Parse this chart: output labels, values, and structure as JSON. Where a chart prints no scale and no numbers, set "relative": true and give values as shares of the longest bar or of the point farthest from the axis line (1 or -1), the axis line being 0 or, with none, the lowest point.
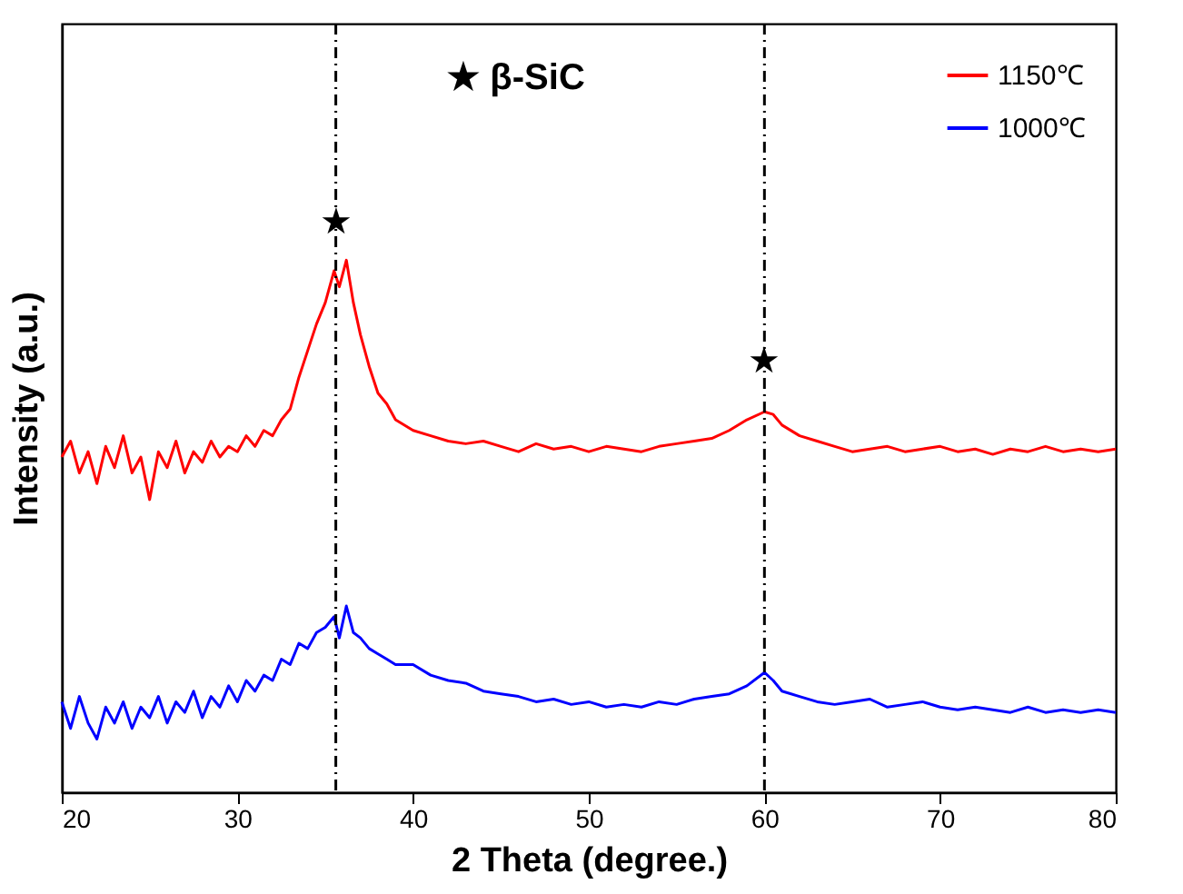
{
  "chart_data": {
    "type": "line",
    "relative": true,
    "xlabel": "2 Theta (degree.)",
    "ylabel": "Intensity (a.u.)",
    "xlim": [
      20,
      80
    ],
    "xticks": [
      20,
      30,
      40,
      50,
      60,
      70,
      80
    ],
    "grid": false,
    "legend": "top right",
    "marker": "none",
    "line_style": "solid",
    "x": [
      20,
      20.5,
      21,
      21.5,
      22,
      22.5,
      23,
      23.5,
      24,
      24.5,
      25,
      25.5,
      26,
      26.5,
      27,
      27.5,
      28,
      28.5,
      29,
      29.5,
      30,
      30.5,
      31,
      31.5,
      32,
      32.5,
      33,
      33.5,
      34,
      34.5,
      35,
      35.5,
      35.8,
      36.2,
      36.6,
      37,
      37.5,
      38,
      38.5,
      39,
      40,
      41,
      42,
      43,
      44,
      45,
      46,
      47,
      48,
      49,
      50,
      51,
      52,
      53,
      54,
      55,
      56,
      57,
      58,
      59,
      60,
      60.5,
      61,
      62,
      63,
      64,
      65,
      66,
      67,
      68,
      69,
      70,
      71,
      72,
      73,
      74,
      75,
      76,
      77,
      78,
      79,
      80
    ],
    "series": [
      {
        "name": "1150℃",
        "color": "#ff0000",
        "values": [
          0.63,
          0.66,
          0.6,
          0.64,
          0.58,
          0.65,
          0.61,
          0.67,
          0.6,
          0.63,
          0.55,
          0.64,
          0.61,
          0.66,
          0.6,
          0.64,
          0.62,
          0.66,
          0.63,
          0.65,
          0.64,
          0.67,
          0.65,
          0.68,
          0.67,
          0.7,
          0.72,
          0.78,
          0.83,
          0.88,
          0.92,
          0.98,
          0.95,
          1.0,
          0.92,
          0.86,
          0.8,
          0.75,
          0.73,
          0.7,
          0.68,
          0.67,
          0.66,
          0.655,
          0.66,
          0.65,
          0.64,
          0.655,
          0.645,
          0.65,
          0.64,
          0.65,
          0.645,
          0.64,
          0.65,
          0.655,
          0.66,
          0.665,
          0.68,
          0.7,
          0.715,
          0.71,
          0.69,
          0.67,
          0.66,
          0.65,
          0.64,
          0.645,
          0.65,
          0.64,
          0.645,
          0.65,
          0.64,
          0.645,
          0.635,
          0.645,
          0.64,
          0.65,
          0.64,
          0.645,
          0.64,
          0.645
        ]
      },
      {
        "name": "1000℃",
        "color": "#0000ff",
        "values": [
          0.17,
          0.12,
          0.18,
          0.13,
          0.1,
          0.16,
          0.13,
          0.17,
          0.12,
          0.16,
          0.14,
          0.18,
          0.13,
          0.17,
          0.15,
          0.19,
          0.14,
          0.18,
          0.16,
          0.2,
          0.17,
          0.21,
          0.19,
          0.22,
          0.21,
          0.25,
          0.24,
          0.28,
          0.27,
          0.3,
          0.31,
          0.33,
          0.29,
          0.35,
          0.3,
          0.29,
          0.27,
          0.26,
          0.25,
          0.24,
          0.24,
          0.22,
          0.21,
          0.205,
          0.19,
          0.185,
          0.18,
          0.17,
          0.175,
          0.165,
          0.17,
          0.16,
          0.165,
          0.16,
          0.17,
          0.165,
          0.175,
          0.18,
          0.185,
          0.2,
          0.225,
          0.21,
          0.19,
          0.18,
          0.17,
          0.165,
          0.17,
          0.175,
          0.16,
          0.165,
          0.17,
          0.16,
          0.155,
          0.16,
          0.155,
          0.15,
          0.16,
          0.15,
          0.155,
          0.15,
          0.155,
          0.15
        ]
      }
    ],
    "ref_lines": [
      {
        "axis": "x",
        "value": 35.6,
        "color": "#000000",
        "line_style": "dashdot"
      },
      {
        "axis": "x",
        "value": 60,
        "color": "#000000",
        "line_style": "dashdot"
      }
    ],
    "annotations": [
      "★ β-SiC",
      {
        "text": "★",
        "x": 35.6,
        "y": 1.07
      },
      {
        "text": "★",
        "x": 60,
        "y": 0.81
      }
    ]
  }
}
